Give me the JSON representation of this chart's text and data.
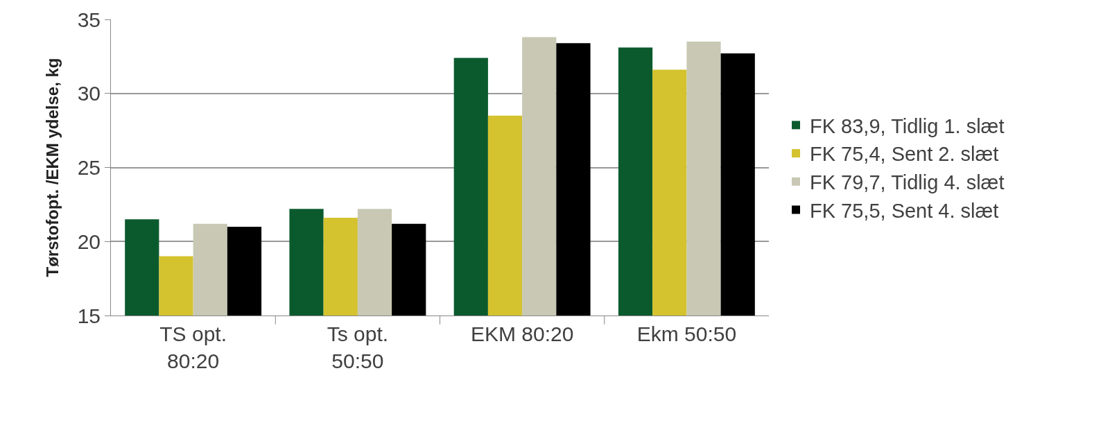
{
  "chart_data": {
    "type": "bar",
    "ylabel": "Tørstofopt. /EKM ydelse, kg",
    "categories": [
      "TS opt. 80:20",
      "Ts opt. 50:50",
      "EKM 80:20",
      "Ekm 50:50"
    ],
    "series": [
      {
        "name": "FK 83,9, Tidlig 1. slæt",
        "color": "#0b5a2e",
        "values": [
          21.5,
          22.2,
          32.4,
          33.1
        ]
      },
      {
        "name": "FK 75,4, Sent 2. slæt",
        "color": "#d4c22e",
        "values": [
          19.0,
          21.6,
          28.5,
          31.6
        ]
      },
      {
        "name": "FK 79,7, Tidlig 4. slæt",
        "color": "#c8c8b4",
        "values": [
          21.2,
          22.2,
          33.8,
          33.5
        ]
      },
      {
        "name": "FK 75,5, Sent 4. slæt",
        "color": "#000000",
        "values": [
          21.0,
          21.2,
          33.4,
          32.7
        ]
      }
    ],
    "ylim": [
      15,
      35
    ],
    "yticks": [
      15,
      20,
      25,
      30,
      35
    ],
    "grid": "y",
    "legend": "right"
  }
}
